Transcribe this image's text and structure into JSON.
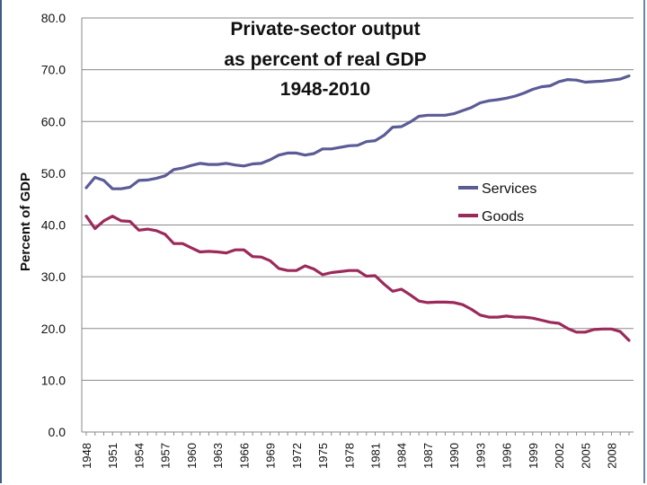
{
  "chart_data": {
    "type": "line",
    "title_lines": [
      "Private-sector output",
      "as percent of real GDP",
      "1948-2010"
    ],
    "xlabel": "",
    "ylabel": "Percent of GDP",
    "ylim": [
      0,
      80
    ],
    "y_ticks": [
      "0.0",
      "10.0",
      "20.0",
      "30.0",
      "40.0",
      "50.0",
      "60.0",
      "70.0",
      "80.0"
    ],
    "x_tick_labels": [
      "1948",
      "1951",
      "1954",
      "1957",
      "1960",
      "1963",
      "1966",
      "1969",
      "1972",
      "1975",
      "1978",
      "1981",
      "1984",
      "1987",
      "1990",
      "1993",
      "1996",
      "1999",
      "2002",
      "2005",
      "2008"
    ],
    "x": [
      1948,
      1949,
      1950,
      1951,
      1952,
      1953,
      1954,
      1955,
      1956,
      1957,
      1958,
      1959,
      1960,
      1961,
      1962,
      1963,
      1964,
      1965,
      1966,
      1967,
      1968,
      1969,
      1970,
      1971,
      1972,
      1973,
      1974,
      1975,
      1976,
      1977,
      1978,
      1979,
      1980,
      1981,
      1982,
      1983,
      1984,
      1985,
      1986,
      1987,
      1988,
      1989,
      1990,
      1991,
      1992,
      1993,
      1994,
      1995,
      1996,
      1997,
      1998,
      1999,
      2000,
      2001,
      2002,
      2003,
      2004,
      2005,
      2006,
      2007,
      2008,
      2009,
      2010
    ],
    "series": [
      {
        "name": "Services",
        "color": "#5b5b96",
        "values": [
          47.2,
          49.2,
          48.6,
          47.0,
          47.0,
          47.3,
          48.6,
          48.7,
          49.0,
          49.5,
          50.7,
          51.0,
          51.5,
          51.9,
          51.7,
          51.7,
          51.9,
          51.6,
          51.4,
          51.8,
          51.9,
          52.6,
          53.5,
          53.9,
          53.9,
          53.5,
          53.8,
          54.7,
          54.7,
          55.0,
          55.3,
          55.4,
          56.1,
          56.3,
          57.3,
          58.9,
          59.0,
          59.9,
          61.0,
          61.2,
          61.2,
          61.2,
          61.5,
          62.1,
          62.7,
          63.6,
          64.0,
          64.2,
          64.5,
          64.9,
          65.5,
          66.2,
          66.7,
          66.9,
          67.7,
          68.1,
          68.0,
          67.6,
          67.7,
          67.8,
          68.0,
          68.2,
          68.8
        ]
      },
      {
        "name": "Goods",
        "color": "#9b2a5a",
        "values": [
          41.7,
          39.3,
          40.8,
          41.7,
          40.8,
          40.7,
          39.0,
          39.2,
          38.9,
          38.2,
          36.4,
          36.4,
          35.6,
          34.8,
          34.9,
          34.8,
          34.6,
          35.2,
          35.2,
          33.9,
          33.8,
          33.1,
          31.6,
          31.2,
          31.2,
          32.1,
          31.5,
          30.4,
          30.8,
          31.0,
          31.2,
          31.2,
          30.1,
          30.2,
          28.6,
          27.2,
          27.6,
          26.5,
          25.3,
          25.0,
          25.1,
          25.1,
          25.0,
          24.6,
          23.7,
          22.6,
          22.2,
          22.2,
          22.4,
          22.2,
          22.2,
          22.0,
          21.6,
          21.2,
          21.0,
          20.0,
          19.3,
          19.3,
          19.8,
          19.9,
          19.9,
          19.4,
          17.7
        ]
      }
    ],
    "legend": "right"
  }
}
